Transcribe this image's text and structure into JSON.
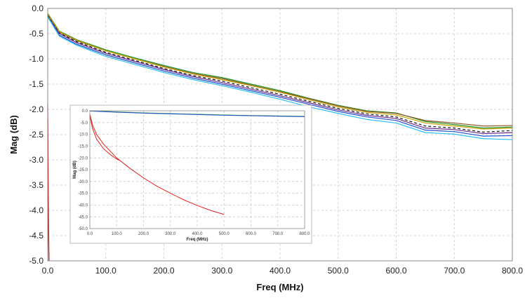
{
  "chart_data": [
    {
      "type": "line",
      "xlabel": "Freq (MHz)",
      "ylabel": "Mag (dB)",
      "xlim": [
        0,
        800
      ],
      "ylim": [
        -5.0,
        0.0
      ],
      "x_ticks": [
        "0.0",
        "100.0",
        "200.0",
        "300.0",
        "400.0",
        "500.0",
        "600.0",
        "700.0",
        "800.0"
      ],
      "y_ticks": [
        "0.0",
        "-0.5",
        "-1.0",
        "-1.5",
        "-2.0",
        "-2.5",
        "-3.0",
        "-3.5",
        "-4.0",
        "-4.5",
        "-5.0"
      ],
      "grid": true,
      "series": [
        {
          "color": "#1a8f1a",
          "style": "solid",
          "points": [
            [
              0,
              -0.1
            ],
            [
              20,
              -0.45
            ],
            [
              50,
              -0.62
            ],
            [
              100,
              -0.82
            ],
            [
              150,
              -0.98
            ],
            [
              200,
              -1.13
            ],
            [
              250,
              -1.27
            ],
            [
              300,
              -1.37
            ],
            [
              350,
              -1.5
            ],
            [
              400,
              -1.63
            ],
            [
              450,
              -1.78
            ],
            [
              500,
              -1.92
            ],
            [
              550,
              -2.03
            ],
            [
              600,
              -2.07
            ],
            [
              650,
              -2.24
            ],
            [
              700,
              -2.3
            ],
            [
              750,
              -2.37
            ],
            [
              800,
              -2.35
            ]
          ]
        },
        {
          "color": "#8b5a2b",
          "style": "solid",
          "points": [
            [
              0,
              -0.12
            ],
            [
              20,
              -0.47
            ],
            [
              50,
              -0.64
            ],
            [
              100,
              -0.84
            ],
            [
              150,
              -1.0
            ],
            [
              200,
              -1.15
            ],
            [
              250,
              -1.29
            ],
            [
              300,
              -1.39
            ],
            [
              350,
              -1.52
            ],
            [
              400,
              -1.65
            ],
            [
              450,
              -1.79
            ],
            [
              500,
              -1.93
            ],
            [
              550,
              -2.04
            ],
            [
              600,
              -2.08
            ],
            [
              650,
              -2.22
            ],
            [
              700,
              -2.27
            ],
            [
              750,
              -2.33
            ],
            [
              800,
              -2.32
            ]
          ]
        },
        {
          "color": "#c8a000",
          "style": "solid",
          "points": [
            [
              0,
              -0.12
            ],
            [
              20,
              -0.46
            ],
            [
              50,
              -0.63
            ],
            [
              100,
              -0.84
            ],
            [
              150,
              -1.0
            ],
            [
              200,
              -1.16
            ],
            [
              250,
              -1.3
            ],
            [
              300,
              -1.41
            ],
            [
              350,
              -1.53
            ],
            [
              400,
              -1.66
            ],
            [
              450,
              -1.81
            ],
            [
              500,
              -1.95
            ],
            [
              550,
              -2.06
            ],
            [
              600,
              -2.11
            ],
            [
              650,
              -2.27
            ],
            [
              700,
              -2.33
            ],
            [
              750,
              -2.39
            ],
            [
              800,
              -2.37
            ]
          ]
        },
        {
          "color": "#111111",
          "style": "dashed",
          "points": [
            [
              0,
              -0.14
            ],
            [
              20,
              -0.49
            ],
            [
              50,
              -0.66
            ],
            [
              100,
              -0.87
            ],
            [
              150,
              -1.03
            ],
            [
              200,
              -1.19
            ],
            [
              250,
              -1.33
            ],
            [
              300,
              -1.44
            ],
            [
              350,
              -1.57
            ],
            [
              400,
              -1.7
            ],
            [
              450,
              -1.84
            ],
            [
              500,
              -1.98
            ],
            [
              550,
              -2.09
            ],
            [
              600,
              -2.15
            ],
            [
              650,
              -2.33
            ],
            [
              700,
              -2.37
            ],
            [
              750,
              -2.45
            ],
            [
              800,
              -2.42
            ]
          ]
        },
        {
          "color": "#6a2a8a",
          "style": "solid",
          "points": [
            [
              0,
              -0.15
            ],
            [
              20,
              -0.5
            ],
            [
              50,
              -0.68
            ],
            [
              100,
              -0.89
            ],
            [
              150,
              -1.05
            ],
            [
              200,
              -1.21
            ],
            [
              250,
              -1.35
            ],
            [
              300,
              -1.47
            ],
            [
              350,
              -1.6
            ],
            [
              400,
              -1.73
            ],
            [
              450,
              -1.87
            ],
            [
              500,
              -2.01
            ],
            [
              550,
              -2.12
            ],
            [
              600,
              -2.18
            ],
            [
              650,
              -2.37
            ],
            [
              700,
              -2.4
            ],
            [
              750,
              -2.48
            ],
            [
              800,
              -2.46
            ]
          ]
        },
        {
          "color": "#1f4fd0",
          "style": "solid",
          "points": [
            [
              0,
              -0.16
            ],
            [
              20,
              -0.53
            ],
            [
              50,
              -0.71
            ],
            [
              100,
              -0.92
            ],
            [
              150,
              -1.08
            ],
            [
              200,
              -1.24
            ],
            [
              250,
              -1.38
            ],
            [
              300,
              -1.5
            ],
            [
              350,
              -1.63
            ],
            [
              400,
              -1.76
            ],
            [
              450,
              -1.9
            ],
            [
              500,
              -2.04
            ],
            [
              550,
              -2.15
            ],
            [
              600,
              -2.22
            ],
            [
              650,
              -2.41
            ],
            [
              700,
              -2.44
            ],
            [
              750,
              -2.53
            ],
            [
              800,
              -2.52
            ]
          ]
        },
        {
          "color": "#2cc0f0",
          "style": "solid",
          "points": [
            [
              0,
              -0.17
            ],
            [
              20,
              -0.55
            ],
            [
              50,
              -0.73
            ],
            [
              100,
              -0.95
            ],
            [
              150,
              -1.11
            ],
            [
              200,
              -1.27
            ],
            [
              250,
              -1.41
            ],
            [
              300,
              -1.53
            ],
            [
              350,
              -1.66
            ],
            [
              400,
              -1.8
            ],
            [
              450,
              -1.95
            ],
            [
              500,
              -2.08
            ],
            [
              550,
              -2.2
            ],
            [
              600,
              -2.27
            ],
            [
              650,
              -2.46
            ],
            [
              700,
              -2.49
            ],
            [
              750,
              -2.58
            ],
            [
              800,
              -2.6
            ]
          ]
        },
        {
          "color": "#e02020",
          "style": "solid",
          "points": [
            [
              0,
              -1.9
            ],
            [
              0.5,
              -2.9
            ],
            [
              1,
              -3.9
            ],
            [
              1.5,
              -4.6
            ],
            [
              2,
              -5.0
            ]
          ]
        },
        {
          "color": "#e02020",
          "style": "solid",
          "points": [
            [
              0,
              -2.2
            ],
            [
              0.8,
              -3.2
            ],
            [
              1.5,
              -4.2
            ],
            [
              2.2,
              -5.0
            ]
          ]
        }
      ]
    },
    {
      "type": "line",
      "xlabel": "Freq (MHz)",
      "ylabel": "Mag (dB)",
      "xlim": [
        0,
        800
      ],
      "ylim": [
        -50.0,
        0.0
      ],
      "x_ticks": [
        "0.0",
        "100.0",
        "200.0",
        "300.0",
        "400.0",
        "500.0",
        "600.0",
        "700.0",
        "800.0"
      ],
      "y_ticks": [
        "0.0",
        "-5.0",
        "-10.0",
        "-15.0",
        "-20.0",
        "-25.0",
        "-30.0",
        "-35.0",
        "-40.0",
        "-45.0",
        "-50.0"
      ],
      "grid": true,
      "series": [
        {
          "color": "#1a8f1a",
          "style": "solid",
          "points": [
            [
              0,
              0
            ],
            [
              100,
              -0.5
            ],
            [
              200,
              -0.9
            ],
            [
              300,
              -1.2
            ],
            [
              400,
              -1.5
            ],
            [
              500,
              -1.8
            ],
            [
              600,
              -2.0
            ],
            [
              700,
              -2.2
            ],
            [
              800,
              -2.4
            ]
          ]
        },
        {
          "color": "#1f4fd0",
          "style": "solid",
          "points": [
            [
              0,
              -0.1
            ],
            [
              100,
              -0.6
            ],
            [
              200,
              -1.0
            ],
            [
              300,
              -1.3
            ],
            [
              400,
              -1.6
            ],
            [
              500,
              -1.9
            ],
            [
              600,
              -2.1
            ],
            [
              700,
              -2.3
            ],
            [
              800,
              -2.5
            ]
          ]
        },
        {
          "color": "#e02020",
          "style": "solid",
          "points": [
            [
              0,
              -1.5
            ],
            [
              10,
              -6.0
            ],
            [
              25,
              -10.0
            ],
            [
              50,
              -14.0
            ],
            [
              100,
              -20.0
            ],
            [
              150,
              -24.5
            ],
            [
              200,
              -28.5
            ],
            [
              250,
              -32.0
            ],
            [
              300,
              -35.0
            ],
            [
              350,
              -37.8
            ],
            [
              400,
              -40.2
            ],
            [
              450,
              -42.3
            ],
            [
              500,
              -44.0
            ]
          ]
        },
        {
          "color": "#e02020",
          "style": "solid",
          "points": [
            [
              0,
              -2.0
            ],
            [
              10,
              -7.5
            ],
            [
              25,
              -12.0
            ],
            [
              50,
              -16.0
            ],
            [
              75,
              -18.5
            ],
            [
              100,
              -20.5
            ],
            [
              110,
              -21.0
            ]
          ]
        }
      ]
    }
  ]
}
